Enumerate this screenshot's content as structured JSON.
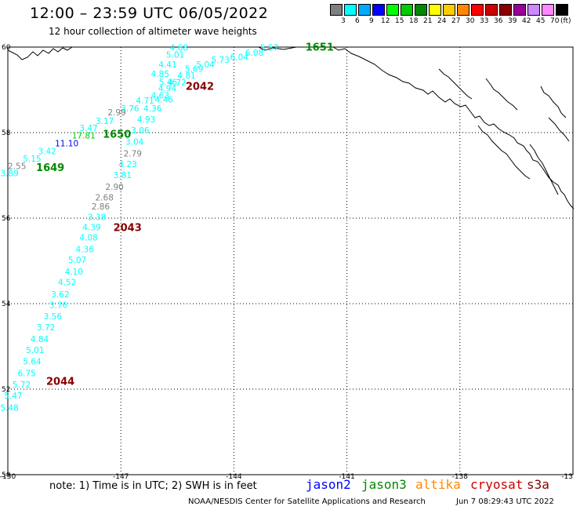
{
  "header": {
    "title": "12:00 – 23:59 UTC 06/05/2022",
    "subtitle": "12 hour collection of altimeter wave heights"
  },
  "legend": {
    "unit": "(ft)",
    "bins": [
      {
        "label": "3",
        "color": "#7f7f7f"
      },
      {
        "label": "6",
        "color": "#00ffff"
      },
      {
        "label": "9",
        "color": "#00aaff"
      },
      {
        "label": "12",
        "color": "#0000ff"
      },
      {
        "label": "15",
        "color": "#00ff00"
      },
      {
        "label": "18",
        "color": "#00cc00"
      },
      {
        "label": "21",
        "color": "#008800"
      },
      {
        "label": "24",
        "color": "#ffff00"
      },
      {
        "label": "27",
        "color": "#ffcc00"
      },
      {
        "label": "30",
        "color": "#ff8800"
      },
      {
        "label": "33",
        "color": "#ff0000"
      },
      {
        "label": "36",
        "color": "#cc0000"
      },
      {
        "label": "39",
        "color": "#880000"
      },
      {
        "label": "42",
        "color": "#990099"
      },
      {
        "label": "45",
        "color": "#cc88ff"
      },
      {
        "label": "70",
        "color": "#ff88ff"
      },
      {
        "label": "",
        "color": "#000000"
      }
    ]
  },
  "map": {
    "lat_range": [
      50,
      60
    ],
    "lon_range": [
      -150,
      -135
    ],
    "lat_ticks": [
      "60",
      "58",
      "56",
      "54",
      "52",
      "50"
    ],
    "lon_ticks": [
      "-150",
      "-147",
      "-144",
      "-141",
      "-138",
      "-13"
    ],
    "pass_labels": [
      {
        "text": "1651",
        "lon": -142.1,
        "lat": 59.92,
        "color": "#008800"
      },
      {
        "text": "2042",
        "lon": -145.28,
        "lat": 59.0,
        "color": "#880000"
      },
      {
        "text": "1650",
        "lon": -147.48,
        "lat": 57.88,
        "color": "#008800"
      },
      {
        "text": "1649",
        "lon": -149.25,
        "lat": 57.1,
        "color": "#008800"
      },
      {
        "text": "2043",
        "lon": -147.2,
        "lat": 55.7,
        "color": "#880000"
      },
      {
        "text": "2044",
        "lon": -148.98,
        "lat": 52.1,
        "color": "#880000"
      }
    ],
    "swh_points": [
      {
        "v": "5.57",
        "lon": -143.3,
        "lat": 59.92,
        "color": "#00ffff"
      },
      {
        "v": "4.68",
        "lon": -145.7,
        "lat": 59.92,
        "color": "#00ffff"
      },
      {
        "v": "6.08",
        "lon": -143.7,
        "lat": 59.8,
        "color": "#00ffff"
      },
      {
        "v": "5.01",
        "lon": -145.8,
        "lat": 59.75,
        "color": "#00ffff"
      },
      {
        "v": "6.04",
        "lon": -144.1,
        "lat": 59.7,
        "color": "#00ffff"
      },
      {
        "v": "5.73",
        "lon": -144.6,
        "lat": 59.63,
        "color": "#00ffff"
      },
      {
        "v": "4.41",
        "lon": -146.0,
        "lat": 59.52,
        "color": "#00ffff"
      },
      {
        "v": "5.04",
        "lon": -145.0,
        "lat": 59.52,
        "color": "#00ffff"
      },
      {
        "v": "5.69",
        "lon": -145.3,
        "lat": 59.42,
        "color": "#00ffff"
      },
      {
        "v": "4.85",
        "lon": -146.2,
        "lat": 59.3,
        "color": "#00ffff"
      },
      {
        "v": "4.81",
        "lon": -145.5,
        "lat": 59.27,
        "color": "#00ffff"
      },
      {
        "v": "5.46",
        "lon": -145.99,
        "lat": 59.11,
        "color": "#00ffff"
      },
      {
        "v": "4.72",
        "lon": -145.75,
        "lat": 59.1,
        "color": "#00ffff"
      },
      {
        "v": "4.94",
        "lon": -146.01,
        "lat": 58.96,
        "color": "#00ffff"
      },
      {
        "v": "4.63",
        "lon": -146.2,
        "lat": 58.8,
        "color": "#00ffff"
      },
      {
        "v": "4.46",
        "lon": -146.1,
        "lat": 58.71,
        "color": "#00ffff"
      },
      {
        "v": "4.71",
        "lon": -146.6,
        "lat": 58.68,
        "color": "#00ffff"
      },
      {
        "v": "3.76",
        "lon": -147.0,
        "lat": 58.5,
        "color": "#00ffff"
      },
      {
        "v": "4.36",
        "lon": -146.4,
        "lat": 58.5,
        "color": "#00ffff"
      },
      {
        "v": "2.99",
        "lon": -147.35,
        "lat": 58.4,
        "color": "#7f7f7f"
      },
      {
        "v": "4.93",
        "lon": -146.57,
        "lat": 58.24,
        "color": "#00ffff"
      },
      {
        "v": "3.17",
        "lon": -147.67,
        "lat": 58.2,
        "color": "#00ffff"
      },
      {
        "v": "3.47",
        "lon": -148.1,
        "lat": 58.04,
        "color": "#00ffff"
      },
      {
        "v": "3.06",
        "lon": -146.73,
        "lat": 57.98,
        "color": "#00ffff"
      },
      {
        "v": "17.81",
        "lon": -148.3,
        "lat": 57.86,
        "color": "#00cc00"
      },
      {
        "v": "3.04",
        "lon": -146.88,
        "lat": 57.72,
        "color": "#00ffff"
      },
      {
        "v": "11.10",
        "lon": -148.75,
        "lat": 57.68,
        "color": "#0000ff"
      },
      {
        "v": "3.42",
        "lon": -149.2,
        "lat": 57.5,
        "color": "#00ffff"
      },
      {
        "v": "2.79",
        "lon": -146.93,
        "lat": 57.44,
        "color": "#7f7f7f"
      },
      {
        "v": "5.15",
        "lon": -149.6,
        "lat": 57.32,
        "color": "#00ffff"
      },
      {
        "v": "4.23",
        "lon": -147.06,
        "lat": 57.19,
        "color": "#00ffff"
      },
      {
        "v": "2.55",
        "lon": -150.0,
        "lat": 57.15,
        "color": "#7f7f7f"
      },
      {
        "v": "3.89",
        "lon": -150.2,
        "lat": 56.98,
        "color": "#00ffff"
      },
      {
        "v": "3.81",
        "lon": -147.2,
        "lat": 56.94,
        "color": "#00ffff"
      },
      {
        "v": "2.90",
        "lon": -147.41,
        "lat": 56.66,
        "color": "#7f7f7f"
      },
      {
        "v": "2.68",
        "lon": -147.68,
        "lat": 56.41,
        "color": "#7f7f7f"
      },
      {
        "v": "2.86",
        "lon": -147.78,
        "lat": 56.2,
        "color": "#7f7f7f"
      },
      {
        "v": "3.38",
        "lon": -147.88,
        "lat": 55.95,
        "color": "#00ffff"
      },
      {
        "v": "4.39",
        "lon": -148.02,
        "lat": 55.72,
        "color": "#00ffff"
      },
      {
        "v": "4.08",
        "lon": -148.1,
        "lat": 55.48,
        "color": "#00ffff"
      },
      {
        "v": "4.36",
        "lon": -148.2,
        "lat": 55.2,
        "color": "#00ffff"
      },
      {
        "v": "5.07",
        "lon": -148.4,
        "lat": 54.95,
        "color": "#00ffff"
      },
      {
        "v": "4.10",
        "lon": -148.49,
        "lat": 54.68,
        "color": "#00ffff"
      },
      {
        "v": "4.52",
        "lon": -148.67,
        "lat": 54.43,
        "color": "#00ffff"
      },
      {
        "v": "3.62",
        "lon": -148.85,
        "lat": 54.15,
        "color": "#00ffff"
      },
      {
        "v": "3.76",
        "lon": -148.9,
        "lat": 53.9,
        "color": "#00ffff"
      },
      {
        "v": "3.56",
        "lon": -149.05,
        "lat": 53.63,
        "color": "#00ffff"
      },
      {
        "v": "3.72",
        "lon": -149.23,
        "lat": 53.38,
        "color": "#00ffff"
      },
      {
        "v": "4.84",
        "lon": -149.4,
        "lat": 53.1,
        "color": "#00ffff"
      },
      {
        "v": "5.01",
        "lon": -149.52,
        "lat": 52.84,
        "color": "#00ffff"
      },
      {
        "v": "5.64",
        "lon": -149.6,
        "lat": 52.58,
        "color": "#00ffff"
      },
      {
        "v": "6.75",
        "lon": -149.74,
        "lat": 52.3,
        "color": "#00ffff"
      },
      {
        "v": "5.72",
        "lon": -149.88,
        "lat": 52.04,
        "color": "#00ffff"
      },
      {
        "v": "5.47",
        "lon": -150.1,
        "lat": 51.78,
        "color": "#00ffff"
      },
      {
        "v": "5.48",
        "lon": -150.2,
        "lat": 51.5,
        "color": "#00ffff"
      }
    ]
  },
  "footer": {
    "note": "note:  1) Time is in UTC; 2) SWH is in feet",
    "satellites": [
      {
        "name": "jason2",
        "color": "#0000ff"
      },
      {
        "name": "jason3",
        "color": "#008800"
      },
      {
        "name": "altika",
        "color": "#ff8800"
      },
      {
        "name": "cryosat",
        "color": "#cc0000"
      },
      {
        "name": "s3a",
        "color": "#880000"
      }
    ],
    "credit": "NOAA/NESDIS Center for Satellite Applications and Research",
    "timestamp": "Jun  7 08:29:43 UTC 2022"
  }
}
